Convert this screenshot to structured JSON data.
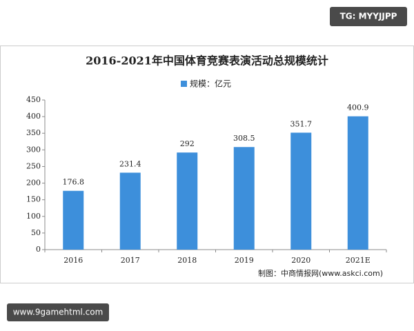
{
  "chart_data": {
    "type": "bar",
    "title": "2016-2021年中国体育竞赛表演活动总规模统计",
    "categories": [
      "2016",
      "2017",
      "2018",
      "2019",
      "2020",
      "2021E"
    ],
    "series": [
      {
        "name": "规模：亿元",
        "color": "#3d8fdb",
        "values": [
          176.8,
          231.4,
          292,
          308.5,
          351.7,
          400.9
        ]
      }
    ],
    "ylim": [
      0,
      450
    ],
    "yticks": [
      0,
      50,
      100,
      150,
      200,
      250,
      300,
      350,
      400,
      450
    ],
    "grid": false,
    "legend": "top",
    "source": "制图：中商情报网(www.askci.com)"
  },
  "top_badge": "TG: MYYJJPP",
  "bottom_badge": "www.9gamehtml.com"
}
